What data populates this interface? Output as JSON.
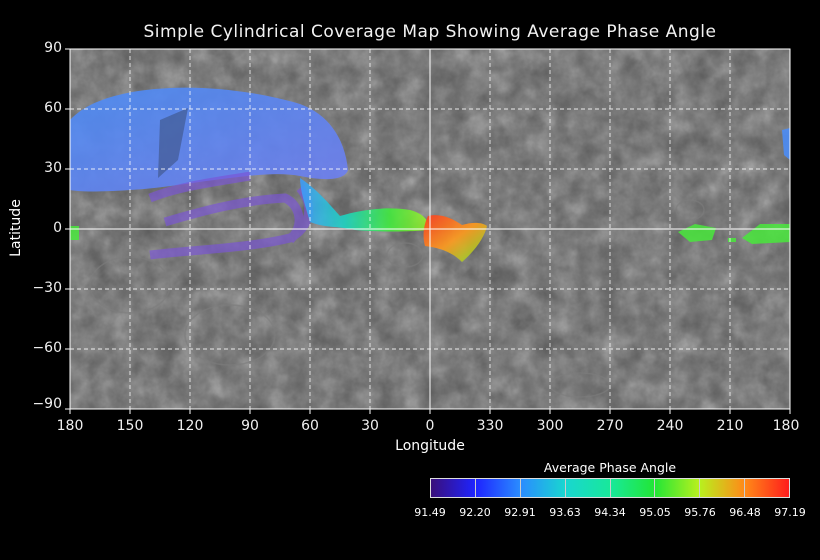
{
  "title": "Simple Cylindrical Coverage Map Showing Average Phase Angle",
  "x_axis": {
    "label": "Longitude",
    "ticks": [
      "180",
      "150",
      "120",
      "90",
      "60",
      "30",
      "0",
      "330",
      "300",
      "270",
      "240",
      "210",
      "180"
    ]
  },
  "y_axis": {
    "label": "Latitude",
    "ticks": [
      "90",
      "60",
      "30",
      "0",
      "−30",
      "−60",
      "−90"
    ]
  },
  "legend": {
    "title": "Average Phase Angle",
    "values": [
      "91.49",
      "92.20",
      "92.91",
      "93.63",
      "94.34",
      "95.05",
      "95.76",
      "96.48",
      "97.19"
    ],
    "colors": [
      "#3a0f7a",
      "#1e24ff",
      "#2a8cff",
      "#19d6d0",
      "#18e89a",
      "#22e636",
      "#b8f01e",
      "#ff8a18",
      "#ff1c1c"
    ]
  },
  "colors": {
    "background": "#000000",
    "basemap": "#5a5a5a",
    "grid": "#ffffff"
  }
}
